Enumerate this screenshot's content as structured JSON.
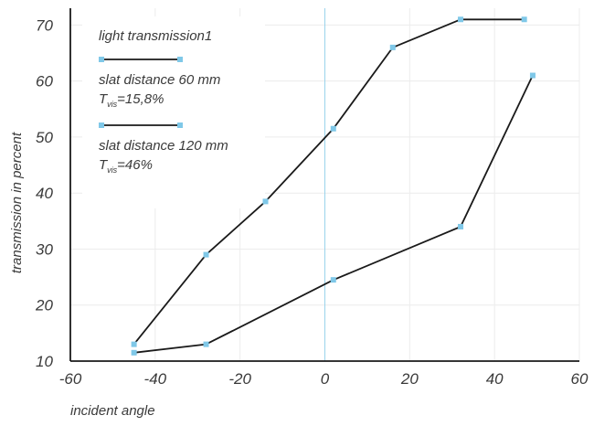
{
  "chart_data": {
    "type": "line",
    "xlabel": "incident angle",
    "ylabel": "transmission in percent",
    "xlim": [
      -60,
      60
    ],
    "ylim": [
      10,
      73
    ],
    "x_ticks": [
      -60,
      -40,
      -20,
      0,
      20,
      40,
      60
    ],
    "y_ticks": [
      10,
      20,
      30,
      40,
      50,
      60,
      70
    ],
    "x_tick_labels": [
      "-60",
      "-40",
      "-20",
      "0",
      "20",
      "40",
      "60"
    ],
    "y_tick_labels": [
      "10",
      "20",
      "30",
      "40",
      "50",
      "60",
      "70"
    ],
    "grid": true,
    "legend": {
      "title": "light transmission1",
      "placement": "top-left",
      "entries": [
        {
          "line1": "slat distance 60 mm",
          "t_symbol": "T",
          "t_sub": "vis",
          "t_value": "=15,8%"
        },
        {
          "line1": "slat distance 120 mm",
          "t_symbol": "T",
          "t_sub": "vis",
          "t_value": "=46%"
        }
      ]
    },
    "series": [
      {
        "x": [
          -45,
          -28,
          -14,
          2,
          16,
          32,
          47
        ],
        "y": [
          13,
          29,
          38.5,
          51.5,
          66,
          71,
          71
        ]
      },
      {
        "x": [
          -45,
          -28,
          2,
          32,
          49
        ],
        "y": [
          11.5,
          13,
          24.5,
          34,
          61
        ]
      }
    ],
    "colors": {
      "line": "#1a1a1a",
      "marker": "#7fc8e8",
      "grid": "#ececec",
      "zero_line": "#9ad3ec",
      "axis": "#1a1a1a",
      "text": "#3a3a3a"
    }
  }
}
